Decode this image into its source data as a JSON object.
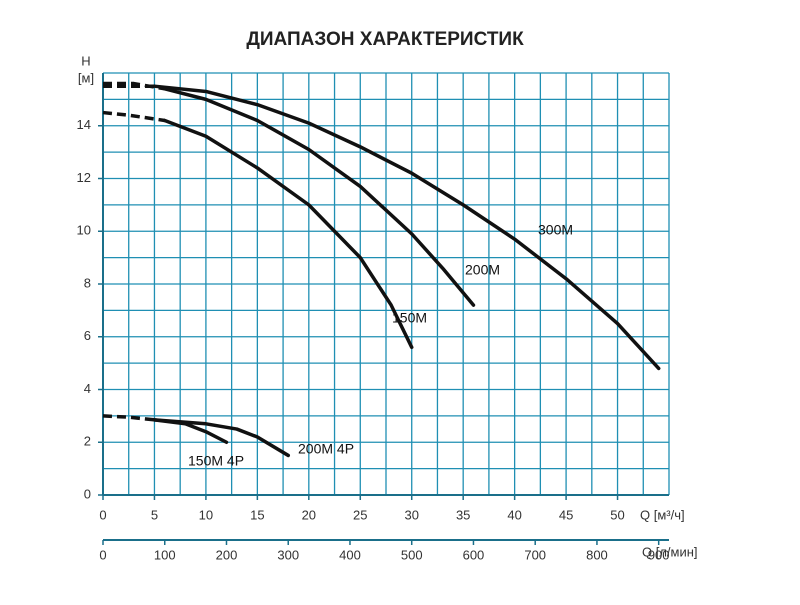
{
  "chart_data": {
    "type": "line",
    "title": "ДИАПАЗОН ХАРАКТЕРИСТИК",
    "y_label_top": "H",
    "y_label_unit": "[м]",
    "x_label": "Q [м³/ч]",
    "x2_label": "Q [л/мин]",
    "xlim": [
      0,
      55
    ],
    "xticks": [
      0,
      5,
      10,
      15,
      20,
      25,
      30,
      35,
      40,
      45,
      50
    ],
    "x2lim": [
      0,
      916.7
    ],
    "x2ticks": [
      0,
      100,
      200,
      300,
      400,
      500,
      600,
      700,
      800,
      900
    ],
    "ylim": [
      0,
      16
    ],
    "yticks": [
      0,
      2,
      4,
      6,
      8,
      10,
      12,
      14
    ],
    "grid": true,
    "x_grid_step": 2.5,
    "y_grid_step": 1,
    "grid_color": "#1f8fb3",
    "series": [
      {
        "name": "300M",
        "color": "#111111",
        "dashed_to": 5,
        "x": [
          0,
          2.5,
          5,
          10,
          15,
          20,
          25,
          30,
          35,
          40,
          45,
          50,
          54
        ],
        "values": [
          15.5,
          15.5,
          15.5,
          15.3,
          14.8,
          14.1,
          13.2,
          12.2,
          11,
          9.7,
          8.2,
          6.5,
          4.8
        ]
      },
      {
        "name": "200M",
        "color": "#111111",
        "dashed_to": 6,
        "x": [
          0,
          3,
          6,
          10,
          15,
          20,
          25,
          30,
          33,
          36
        ],
        "values": [
          15.6,
          15.6,
          15.4,
          15,
          14.2,
          13.1,
          11.7,
          9.9,
          8.6,
          7.2
        ]
      },
      {
        "name": "150M",
        "color": "#111111",
        "dashed_to": 6,
        "x": [
          0,
          2.5,
          6,
          10,
          15,
          20,
          25,
          28,
          30
        ],
        "values": [
          14.5,
          14.4,
          14.2,
          13.6,
          12.4,
          11,
          9,
          7.2,
          5.6
        ]
      },
      {
        "name": "200M 4P",
        "color": "#111111",
        "dashed_to": 5,
        "x": [
          0,
          2.5,
          5,
          10,
          13,
          15,
          18
        ],
        "values": [
          3,
          2.95,
          2.85,
          2.7,
          2.5,
          2.2,
          1.5
        ]
      },
      {
        "name": "150M 4P",
        "color": "#111111",
        "dashed_to": 5,
        "x": [
          5,
          8,
          10,
          12
        ],
        "values": [
          2.85,
          2.7,
          2.4,
          2
        ]
      }
    ]
  }
}
